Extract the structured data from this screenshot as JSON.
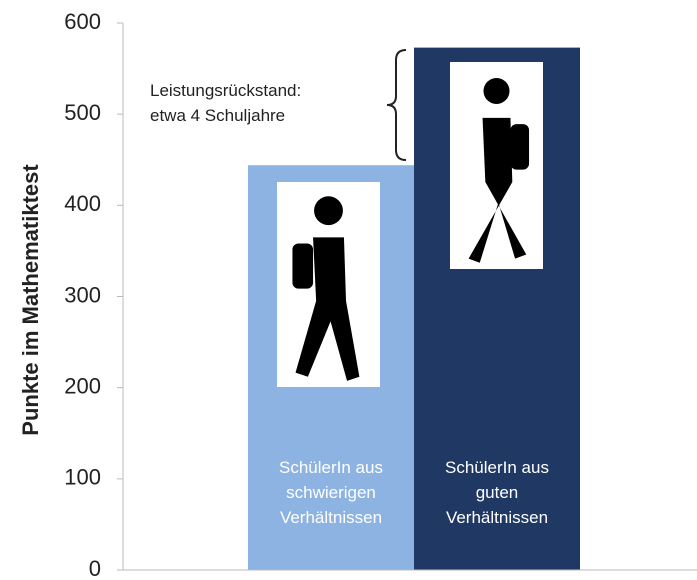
{
  "chart_data": {
    "type": "bar",
    "y_axis_label": "Punkte im Mathematiktest",
    "categories": [
      "SchülerIn aus\nschwierigen\nVerhältnissen",
      "SchülerIn aus\nguten\nVerhältnissen"
    ],
    "values": [
      444,
      573
    ],
    "colors": [
      "#8db3e2",
      "#1f3864"
    ],
    "annotation": "Leistungsrückstand:\netwa 4 Schuljahre",
    "ylim": [
      0,
      600
    ],
    "yticks": [
      0,
      100,
      200,
      300,
      400,
      500,
      600
    ],
    "grid": false
  }
}
